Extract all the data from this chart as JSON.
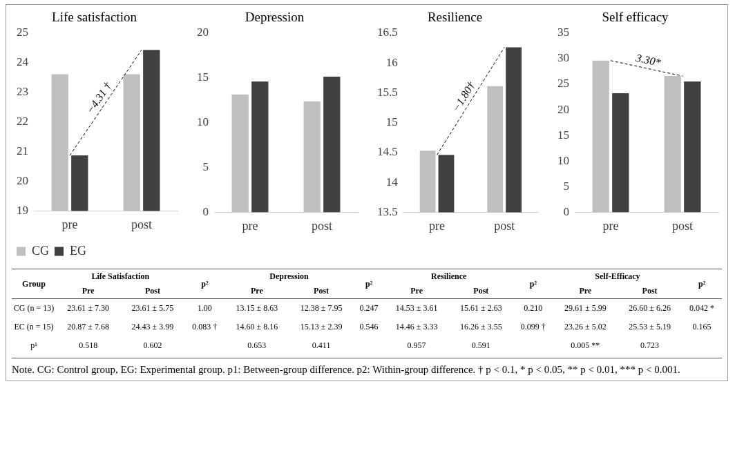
{
  "chart_data": [
    {
      "type": "bar",
      "title": "Life satisfaction",
      "categories": [
        "pre",
        "post"
      ],
      "series": [
        {
          "name": "CG",
          "color": "#bfbfbf",
          "values": [
            23.61,
            23.61
          ]
        },
        {
          "name": "EG",
          "color": "#404040",
          "values": [
            20.87,
            24.43
          ]
        },
        {
          "type": "line",
          "name": "−4.31 †",
          "color": "#000000",
          "values": [
            20.87,
            24.43
          ],
          "line_style": "dashed",
          "marker": "none"
        }
      ],
      "ylim": [
        19,
        25
      ],
      "yticks": [
        19,
        20,
        21,
        22,
        23,
        24,
        25
      ],
      "grid": false,
      "legend": "bottom left"
    },
    {
      "type": "bar",
      "title": "Depression",
      "categories": [
        "pre",
        "post"
      ],
      "series": [
        {
          "color": "#bfbfbf",
          "values": [
            13.15,
            12.38
          ]
        },
        {
          "color": "#404040",
          "values": [
            14.6,
            15.13
          ]
        }
      ],
      "ylim": [
        0,
        20
      ],
      "yticks": [
        0,
        5,
        10,
        15,
        20
      ],
      "grid": false
    },
    {
      "type": "bar",
      "title": "Resilience",
      "categories": [
        "pre",
        "post"
      ],
      "series": [
        {
          "color": "#bfbfbf",
          "values": [
            14.53,
            15.61
          ]
        },
        {
          "color": "#404040",
          "values": [
            14.46,
            16.26
          ]
        },
        {
          "type": "line",
          "name": "−1.80†",
          "color": "#000000",
          "values": [
            14.46,
            16.26
          ],
          "line_style": "dashed",
          "marker": "none"
        }
      ],
      "ylim": [
        13.5,
        16.5
      ],
      "yticks": [
        13.5,
        14,
        14.5,
        15,
        15.5,
        16,
        16.5
      ],
      "grid": false
    },
    {
      "type": "bar",
      "title": "Self efficacy",
      "categories": [
        "pre",
        "post"
      ],
      "series": [
        {
          "color": "#bfbfbf",
          "values": [
            29.61,
            26.6
          ]
        },
        {
          "color": "#404040",
          "values": [
            23.26,
            25.53
          ]
        },
        {
          "type": "line",
          "name": "3.30*",
          "color": "#000000",
          "values": [
            29.61,
            26.6
          ],
          "line_style": "dashed",
          "marker": "none"
        }
      ],
      "ylim": [
        0,
        35
      ],
      "yticks": [
        0,
        5,
        10,
        15,
        20,
        25,
        30,
        35
      ],
      "grid": false
    },
    {
      "type": "other",
      "cell_labels": [
        [
          "Group",
          "Life Satisfaction",
          null,
          "p²",
          "Depression",
          null,
          "p²",
          "Resilience",
          null,
          "p²",
          "Self-Efficacy",
          null,
          "p²"
        ],
        [
          null,
          "Pre",
          "Post",
          null,
          "Pre",
          "Post",
          null,
          "Pre",
          "Post",
          null,
          "Pre",
          "Post",
          null
        ],
        [
          "CG (n = 13)",
          "23.61 ± 7.30",
          "23.61 ± 5.75",
          "1.00",
          "13.15 ± 8.63",
          "12.38 ± 7.95",
          "0.247",
          "14.53 ± 3.61",
          "15.61 ± 2.63",
          "0.210",
          "29.61 ± 5.99",
          "26.60 ± 6.26",
          "0.042 *"
        ],
        [
          "EC (n = 15)",
          "20.87 ± 7.68",
          "24.43 ± 3.99",
          "0.083 †",
          "14.60 ± 8.16",
          "15.13 ± 2.39",
          "0.546",
          "14.46 ± 3.33",
          "16.26 ± 3.55",
          "0.099 †",
          "23.26 ± 5.02",
          "25.53 ± 5.19",
          "0.165"
        ],
        [
          "p¹",
          "0.518",
          "0.602",
          null,
          "0.653",
          "0.411",
          null,
          "0.957",
          "0.591",
          null,
          "0.005 **",
          "0.723",
          null
        ]
      ],
      "annotations": [
        "Note. CG: Control group, EG: Experimental group. p1: Between-group difference. p2: Within-group difference. † p < 0.1, * p < 0.05, ** p < 0.01, *** p < 0.001."
      ]
    }
  ]
}
